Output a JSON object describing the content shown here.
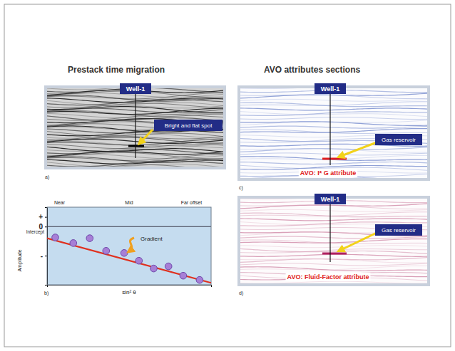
{
  "titles": {
    "left": "Prestack time migration",
    "right": "AVO attributes sections"
  },
  "sections": [
    {
      "letter": "a)",
      "well": "Well-1",
      "callout": "Bright and flat spot"
    },
    {
      "letter": "c)",
      "well": "Well-1",
      "callout": "Gas reservoir",
      "caption": "AVO: I* G attribute"
    },
    {
      "letter": "d)",
      "well": "Well-1",
      "callout": "Gas reservoir",
      "caption": "AVO: Fluid-Factor attribute"
    }
  ],
  "chart_data": {
    "type": "scatter",
    "x_label": "sin² θ",
    "y_label": "Amplitude",
    "annotations": [
      "Near",
      "Mid",
      "Far offset",
      "Gradient",
      "Intercept",
      "b)"
    ],
    "xlim": [
      0,
      1
    ],
    "ylim": [
      -3,
      1
    ],
    "xticks": [],
    "yticks": [
      {
        "value": 0.5,
        "label": "+"
      },
      0,
      {
        "value": -1.5,
        "label": "-"
      }
    ],
    "tick_labels": "y",
    "series": [
      {
        "type": "scatter",
        "color": "#a77fd6",
        "marker": "circle",
        "x": [
          0.05,
          0.16,
          0.26,
          0.36,
          0.47,
          0.56,
          0.65,
          0.74,
          0.83,
          0.93
        ],
        "values": [
          -0.56,
          -0.85,
          -0.6,
          -1.25,
          -1.36,
          -1.76,
          -2.16,
          -2.05,
          -2.53,
          -2.75
        ]
      },
      {
        "type": "line",
        "color": "#e0301e",
        "line_style": "solid",
        "x": [
          0,
          1
        ],
        "values": [
          -0.6,
          -2.9
        ]
      }
    ]
  }
}
